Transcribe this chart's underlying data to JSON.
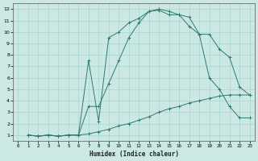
{
  "xlabel": "Humidex (Indice chaleur)",
  "bg_color": "#cce8e4",
  "grid_color": "#aad4ce",
  "line_color": "#2d7b6e",
  "xlim": [
    -0.5,
    23.5
  ],
  "ylim": [
    0.5,
    12.5
  ],
  "xticks": [
    0,
    1,
    2,
    3,
    4,
    5,
    6,
    7,
    8,
    9,
    10,
    11,
    12,
    13,
    14,
    15,
    16,
    17,
    18,
    19,
    20,
    21,
    22,
    23
  ],
  "yticks": [
    1,
    2,
    3,
    4,
    5,
    6,
    7,
    8,
    9,
    10,
    11,
    12
  ],
  "curve1_x": [
    1,
    2,
    3,
    4,
    5,
    6,
    7,
    8,
    9,
    10,
    11,
    12,
    13,
    14,
    15,
    16,
    17,
    18,
    19,
    20,
    21,
    22,
    23
  ],
  "curve1_y": [
    1,
    0.9,
    1,
    0.9,
    1,
    1,
    7.5,
    2.2,
    9.5,
    10,
    10.8,
    11.2,
    11.8,
    11.9,
    11.5,
    11.5,
    10.5,
    9.8,
    9.8,
    8.5,
    7.8,
    5.2,
    4.5
  ],
  "curve2_x": [
    1,
    2,
    3,
    4,
    5,
    6,
    7,
    8,
    9,
    10,
    11,
    12,
    13,
    14,
    15,
    16,
    17,
    18,
    19,
    20,
    21,
    22,
    23
  ],
  "curve2_y": [
    1,
    0.9,
    1,
    0.9,
    1,
    1,
    3.5,
    3.5,
    5.5,
    7.5,
    9.5,
    10.8,
    11.8,
    12,
    11.8,
    11.5,
    11.3,
    9.8,
    6.0,
    5.0,
    3.5,
    2.5,
    2.5
  ],
  "curve3_x": [
    1,
    2,
    3,
    4,
    5,
    6,
    7,
    8,
    9,
    10,
    11,
    12,
    13,
    14,
    15,
    16,
    17,
    18,
    19,
    20,
    21,
    22,
    23
  ],
  "curve3_y": [
    1,
    0.9,
    1,
    0.9,
    1,
    1,
    1.1,
    1.3,
    1.5,
    1.8,
    2.0,
    2.3,
    2.6,
    3.0,
    3.3,
    3.5,
    3.8,
    4.0,
    4.2,
    4.4,
    4.5,
    4.5,
    4.5
  ]
}
